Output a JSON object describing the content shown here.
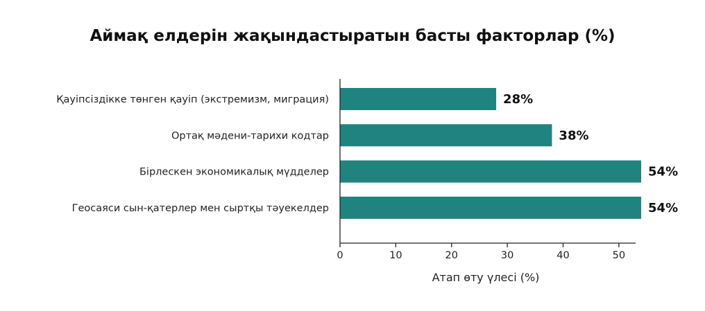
{
  "chart_data": {
    "type": "bar",
    "orientation": "horizontal",
    "title": "Аймақ елдерін жақындастыратын басты факторлар (%)",
    "xlabel": "Атап өту үлесі (%)",
    "ylabel": "",
    "categories": [
      "Қауіпсіздікке төнген қауіп (экстремизм, миграция)",
      "Ортақ мәдени-тарихи кодтар",
      "Бірлескен экономикалық мүдделер",
      "Геосаяси сын-қатерлер мен сыртқы тәуекелдер"
    ],
    "values": [
      28,
      38,
      54,
      54
    ],
    "data_labels": [
      "28%",
      "38%",
      "54%",
      "54%"
    ],
    "xticks": [
      0,
      10,
      20,
      30,
      40,
      50
    ],
    "xlim": [
      0,
      53
    ],
    "grid": false,
    "bar_color": "#218380"
  }
}
